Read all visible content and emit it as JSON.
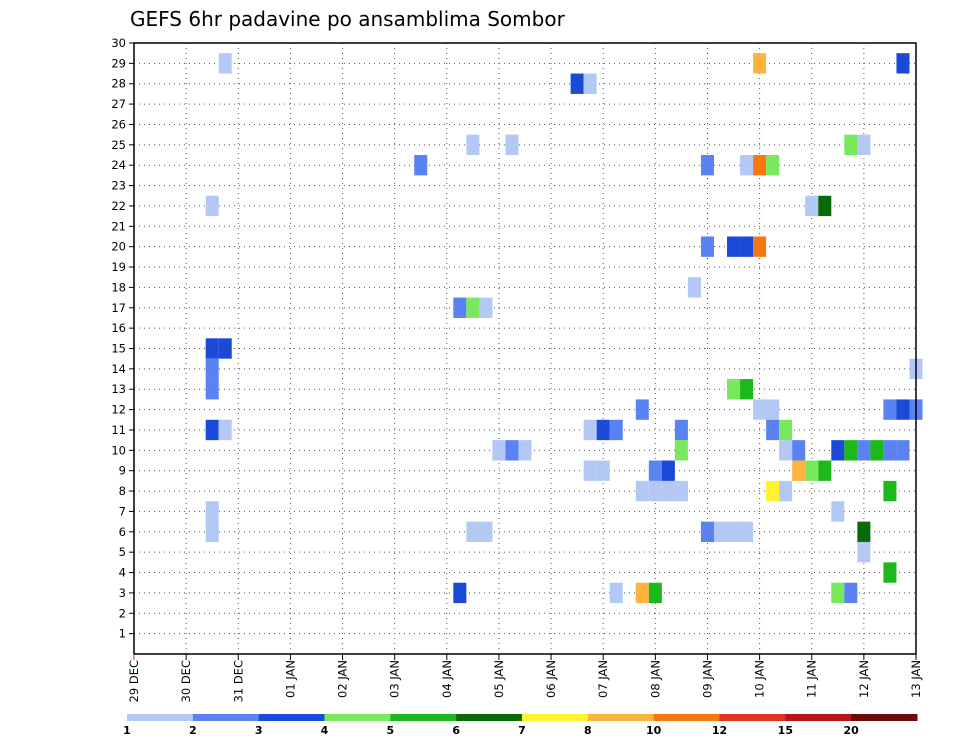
{
  "chart_data": {
    "type": "heatmap",
    "title": "GEFS 6hr padavine po ansamblima Sombor",
    "y_min": 0,
    "y_max": 30,
    "y_ticks": [
      1,
      2,
      3,
      4,
      5,
      6,
      7,
      8,
      9,
      10,
      11,
      12,
      13,
      14,
      15,
      16,
      17,
      18,
      19,
      20,
      21,
      22,
      23,
      24,
      25,
      26,
      27,
      28,
      29,
      30
    ],
    "x_ticks": [
      "29 DEC",
      "30 DEC",
      "31 DEC",
      "01 JAN",
      "02 JAN",
      "03 JAN",
      "04 JAN",
      "05 JAN",
      "06 JAN",
      "07 JAN",
      "08 JAN",
      "09 JAN",
      "10 JAN",
      "11 JAN",
      "12 JAN",
      "13 JAN"
    ],
    "grid": true,
    "color_thresholds": [
      1,
      2,
      3,
      4,
      5,
      6,
      7,
      8,
      10,
      12,
      15,
      20
    ],
    "color_levels": [
      "#b4c8f5",
      "#5a82f0",
      "#1c4ad8",
      "#7ae85c",
      "#1cb81c",
      "#0a6a0a",
      "#fff22e",
      "#fdb33e",
      "#f57810",
      "#e0321c",
      "#b8141c",
      "#6e0a0a"
    ],
    "cells": [
      {
        "d": 1.75,
        "m": 29,
        "l": 1
      },
      {
        "d": 1.5,
        "m": 22,
        "l": 1
      },
      {
        "d": 1.5,
        "m": 15,
        "l": 3
      },
      {
        "d": 1.75,
        "m": 15,
        "l": 3
      },
      {
        "d": 1.5,
        "m": 14,
        "l": 2
      },
      {
        "d": 1.5,
        "m": 13,
        "l": 2
      },
      {
        "d": 1.5,
        "m": 11,
        "l": 3
      },
      {
        "d": 1.75,
        "m": 11,
        "l": 1
      },
      {
        "d": 1.5,
        "m": 7,
        "l": 1
      },
      {
        "d": 1.5,
        "m": 6,
        "l": 1
      },
      {
        "d": 5.5,
        "m": 24,
        "l": 2
      },
      {
        "d": 6.5,
        "m": 25,
        "l": 1
      },
      {
        "d": 7.25,
        "m": 25,
        "l": 1
      },
      {
        "d": 6.25,
        "m": 17,
        "l": 2
      },
      {
        "d": 6.5,
        "m": 17,
        "l": 4
      },
      {
        "d": 6.75,
        "m": 17,
        "l": 1
      },
      {
        "d": 6.5,
        "m": 6,
        "l": 1
      },
      {
        "d": 6.75,
        "m": 6,
        "l": 1
      },
      {
        "d": 6.25,
        "m": 3,
        "l": 3
      },
      {
        "d": 7.0,
        "m": 10,
        "l": 1
      },
      {
        "d": 7.25,
        "m": 10,
        "l": 2
      },
      {
        "d": 7.5,
        "m": 10,
        "l": 1
      },
      {
        "d": 8.5,
        "m": 28,
        "l": 3
      },
      {
        "d": 8.75,
        "m": 28,
        "l": 1
      },
      {
        "d": 8.75,
        "m": 11,
        "l": 1
      },
      {
        "d": 9.0,
        "m": 11,
        "l": 3
      },
      {
        "d": 9.25,
        "m": 11,
        "l": 2
      },
      {
        "d": 8.75,
        "m": 9,
        "l": 1
      },
      {
        "d": 9.0,
        "m": 9,
        "l": 1
      },
      {
        "d": 9.25,
        "m": 3,
        "l": 1
      },
      {
        "d": 9.75,
        "m": 12,
        "l": 2
      },
      {
        "d": 9.75,
        "m": 8,
        "l": 1
      },
      {
        "d": 10.0,
        "m": 8,
        "l": 1
      },
      {
        "d": 10.25,
        "m": 8,
        "l": 1
      },
      {
        "d": 10.5,
        "m": 8,
        "l": 1
      },
      {
        "d": 10.0,
        "m": 9,
        "l": 2
      },
      {
        "d": 10.25,
        "m": 9,
        "l": 3
      },
      {
        "d": 10.5,
        "m": 11,
        "l": 2
      },
      {
        "d": 10.5,
        "m": 10,
        "l": 4
      },
      {
        "d": 9.75,
        "m": 3,
        "l": 8
      },
      {
        "d": 10.0,
        "m": 3,
        "l": 5
      },
      {
        "d": 11.0,
        "m": 24,
        "l": 2
      },
      {
        "d": 11.0,
        "m": 20,
        "l": 2
      },
      {
        "d": 10.75,
        "m": 18,
        "l": 1
      },
      {
        "d": 11.0,
        "m": 6,
        "l": 2
      },
      {
        "d": 11.25,
        "m": 6,
        "l": 1
      },
      {
        "d": 11.5,
        "m": 6,
        "l": 1
      },
      {
        "d": 11.75,
        "m": 6,
        "l": 1
      },
      {
        "d": 11.5,
        "m": 20,
        "l": 3
      },
      {
        "d": 11.75,
        "m": 20,
        "l": 3
      },
      {
        "d": 12.0,
        "m": 20,
        "l": 9
      },
      {
        "d": 11.75,
        "m": 24,
        "l": 1
      },
      {
        "d": 12.0,
        "m": 24,
        "l": 9
      },
      {
        "d": 12.25,
        "m": 24,
        "l": 4
      },
      {
        "d": 12.0,
        "m": 29,
        "l": 8
      },
      {
        "d": 11.5,
        "m": 13,
        "l": 4
      },
      {
        "d": 11.75,
        "m": 13,
        "l": 5
      },
      {
        "d": 12.0,
        "m": 12,
        "l": 1
      },
      {
        "d": 12.25,
        "m": 12,
        "l": 1
      },
      {
        "d": 12.25,
        "m": 11,
        "l": 2
      },
      {
        "d": 12.5,
        "m": 11,
        "l": 4
      },
      {
        "d": 12.5,
        "m": 10,
        "l": 1
      },
      {
        "d": 12.75,
        "m": 10,
        "l": 2
      },
      {
        "d": 12.75,
        "m": 9,
        "l": 8
      },
      {
        "d": 13.0,
        "m": 9,
        "l": 4
      },
      {
        "d": 13.25,
        "m": 9,
        "l": 5
      },
      {
        "d": 12.25,
        "m": 8,
        "l": 7
      },
      {
        "d": 12.5,
        "m": 8,
        "l": 1
      },
      {
        "d": 13.0,
        "m": 22,
        "l": 1
      },
      {
        "d": 13.25,
        "m": 22,
        "l": 6
      },
      {
        "d": 13.75,
        "m": 25,
        "l": 4
      },
      {
        "d": 14.0,
        "m": 25,
        "l": 1
      },
      {
        "d": 14.75,
        "m": 29,
        "l": 3
      },
      {
        "d": 13.5,
        "m": 10,
        "l": 3
      },
      {
        "d": 13.75,
        "m": 10,
        "l": 5
      },
      {
        "d": 14.0,
        "m": 10,
        "l": 2
      },
      {
        "d": 14.25,
        "m": 10,
        "l": 5
      },
      {
        "d": 14.5,
        "m": 10,
        "l": 2
      },
      {
        "d": 14.75,
        "m": 10,
        "l": 2
      },
      {
        "d": 14.5,
        "m": 12,
        "l": 2
      },
      {
        "d": 14.75,
        "m": 12,
        "l": 3
      },
      {
        "d": 15.0,
        "m": 12,
        "l": 2
      },
      {
        "d": 15.0,
        "m": 14,
        "l": 1
      },
      {
        "d": 14.5,
        "m": 8,
        "l": 5
      },
      {
        "d": 13.5,
        "m": 7,
        "l": 1
      },
      {
        "d": 14.0,
        "m": 6,
        "l": 6
      },
      {
        "d": 14.0,
        "m": 5,
        "l": 1
      },
      {
        "d": 14.5,
        "m": 4,
        "l": 5
      },
      {
        "d": 13.5,
        "m": 3,
        "l": 4
      },
      {
        "d": 13.75,
        "m": 3,
        "l": 2
      }
    ]
  }
}
